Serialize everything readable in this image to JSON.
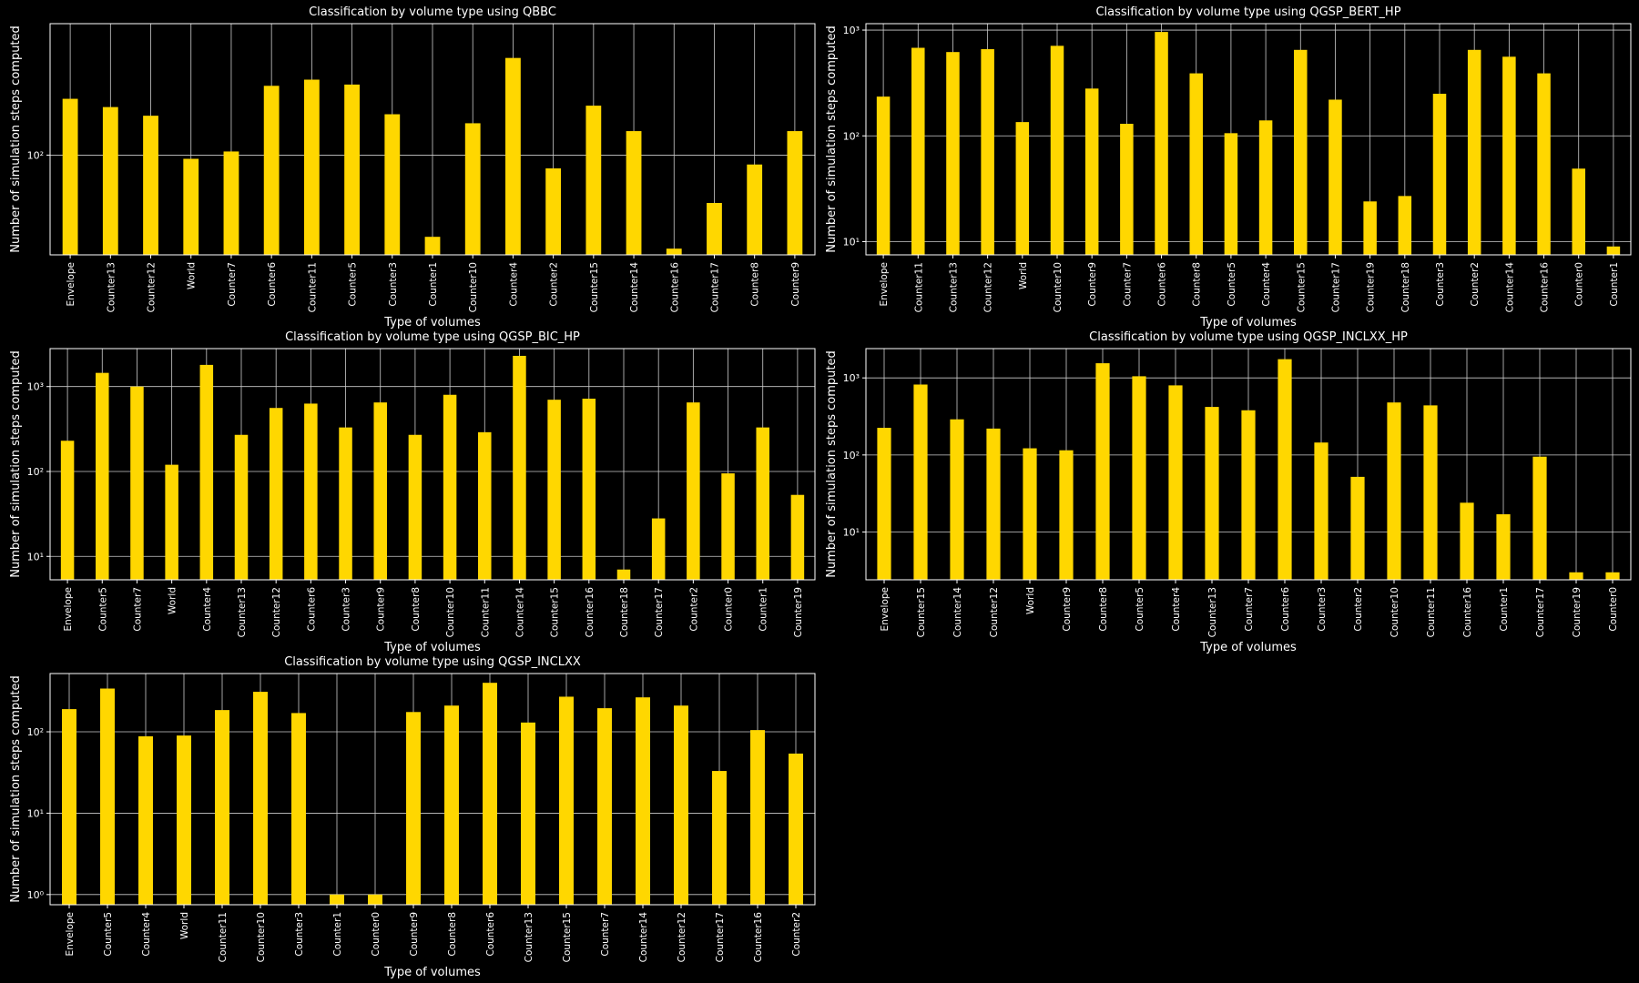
{
  "figure": {
    "background": "#000000",
    "bar_color": "#ffd700",
    "text_color": "#ffffff",
    "grid_color": "#cccccc"
  },
  "chart_data": [
    {
      "type": "bar",
      "scale": "log",
      "grid": true,
      "title": "Classification by volume type using QBBC",
      "xlabel": "Type of volumes",
      "ylabel": "Number of simulation steps computed",
      "ylim": [
        58,
        205
      ],
      "yticks": [
        {
          "value": 100,
          "label": "10²"
        }
      ],
      "categories": [
        "Envelope",
        "Counter13",
        "Counter12",
        "World",
        "Counter7",
        "Counter6",
        "Counter11",
        "Counter5",
        "Counter3",
        "Counter1",
        "Counter10",
        "Counter4",
        "Counter2",
        "Counter15",
        "Counter14",
        "Counter16",
        "Counter17",
        "Counter8",
        "Counter9"
      ],
      "values": [
        136,
        130,
        124,
        98,
        102,
        146,
        151,
        147,
        125,
        64,
        119,
        170,
        93,
        131,
        114,
        60,
        77,
        95,
        114
      ]
    },
    {
      "type": "bar",
      "scale": "log",
      "grid": true,
      "title": "Classification by volume type using QGSP_BERT_HP",
      "xlabel": "Type of volumes",
      "ylabel": "Number of simulation steps computed",
      "ylim": [
        7.5,
        1150
      ],
      "yticks": [
        {
          "value": 10,
          "label": "10¹"
        },
        {
          "value": 100,
          "label": "10²"
        },
        {
          "value": 1000,
          "label": "10³"
        }
      ],
      "categories": [
        "Envelope",
        "Counter11",
        "Counter13",
        "Counter12",
        "World",
        "Counter10",
        "Counter9",
        "Counter7",
        "Counter6",
        "Counter8",
        "Counter5",
        "Counter4",
        "Counter15",
        "Counter17",
        "Counter19",
        "Counter18",
        "Counter3",
        "Counter2",
        "Counter14",
        "Counter16",
        "Counter0",
        "Counter1"
      ],
      "values": [
        235,
        680,
        620,
        660,
        135,
        710,
        280,
        130,
        960,
        390,
        106,
        140,
        650,
        220,
        24,
        27,
        250,
        650,
        560,
        390,
        49,
        9
      ]
    },
    {
      "type": "bar",
      "scale": "log",
      "grid": true,
      "title": "Classification by volume type using QGSP_BIC_HP",
      "xlabel": "Type of volumes",
      "ylabel": "Number of simulation steps computed",
      "ylim": [
        5.3,
        2800
      ],
      "yticks": [
        {
          "value": 10,
          "label": "10¹"
        },
        {
          "value": 100,
          "label": "10²"
        },
        {
          "value": 1000,
          "label": "10³"
        }
      ],
      "categories": [
        "Envelope",
        "Counter5",
        "Counter7",
        "World",
        "Counter4",
        "Counter13",
        "Counter12",
        "Counter6",
        "Counter3",
        "Counter9",
        "Counter8",
        "Counter10",
        "Counter11",
        "Counter14",
        "Counter15",
        "Counter16",
        "Counter18",
        "Counter17",
        "Counter2",
        "Counter0",
        "Counter1",
        "Counter19"
      ],
      "values": [
        230,
        1450,
        1000,
        120,
        1800,
        270,
        560,
        630,
        330,
        650,
        270,
        800,
        290,
        2300,
        700,
        720,
        7,
        28,
        650,
        95,
        330,
        53
      ]
    },
    {
      "type": "bar",
      "scale": "log",
      "grid": true,
      "title": "Classification by volume type using QGSP_INCLXX_HP",
      "xlabel": "Type of volumes",
      "ylabel": "Number of simulation steps computed",
      "ylim": [
        2.4,
        2400
      ],
      "yticks": [
        {
          "value": 10,
          "label": "10¹"
        },
        {
          "value": 100,
          "label": "10²"
        },
        {
          "value": 1000,
          "label": "10³"
        }
      ],
      "categories": [
        "Envelope",
        "Counter15",
        "Counter14",
        "Counter12",
        "World",
        "Counter9",
        "Counter8",
        "Counter5",
        "Counter4",
        "Counter13",
        "Counter7",
        "Counter6",
        "Counter3",
        "Counter2",
        "Counter10",
        "Counter11",
        "Counter16",
        "Counter1",
        "Counter17",
        "Counter19",
        "Counter0"
      ],
      "values": [
        225,
        820,
        290,
        220,
        122,
        115,
        1550,
        1050,
        800,
        420,
        380,
        1750,
        145,
        52,
        480,
        440,
        24,
        17,
        95,
        3,
        3
      ]
    },
    {
      "type": "bar",
      "scale": "log",
      "grid": true,
      "title": "Classification by volume type using QGSP_INCLXX",
      "xlabel": "Type of volumes",
      "ylabel": "Number of simulation steps computed",
      "ylim": [
        0.75,
        520
      ],
      "yticks": [
        {
          "value": 1,
          "label": "10⁰"
        },
        {
          "value": 10,
          "label": "10¹"
        },
        {
          "value": 100,
          "label": "10²"
        }
      ],
      "categories": [
        "Envelope",
        "Counter5",
        "Counter4",
        "World",
        "Counter11",
        "Counter10",
        "Counter3",
        "Counter1",
        "Counter0",
        "Counter9",
        "Counter8",
        "Counter6",
        "Counter13",
        "Counter15",
        "Counter7",
        "Counter14",
        "Counter12",
        "Counter17",
        "Counter16",
        "Counter2"
      ],
      "values": [
        190,
        340,
        88,
        90,
        185,
        310,
        170,
        1,
        1,
        175,
        210,
        400,
        130,
        270,
        195,
        265,
        210,
        33,
        105,
        54
      ]
    }
  ]
}
